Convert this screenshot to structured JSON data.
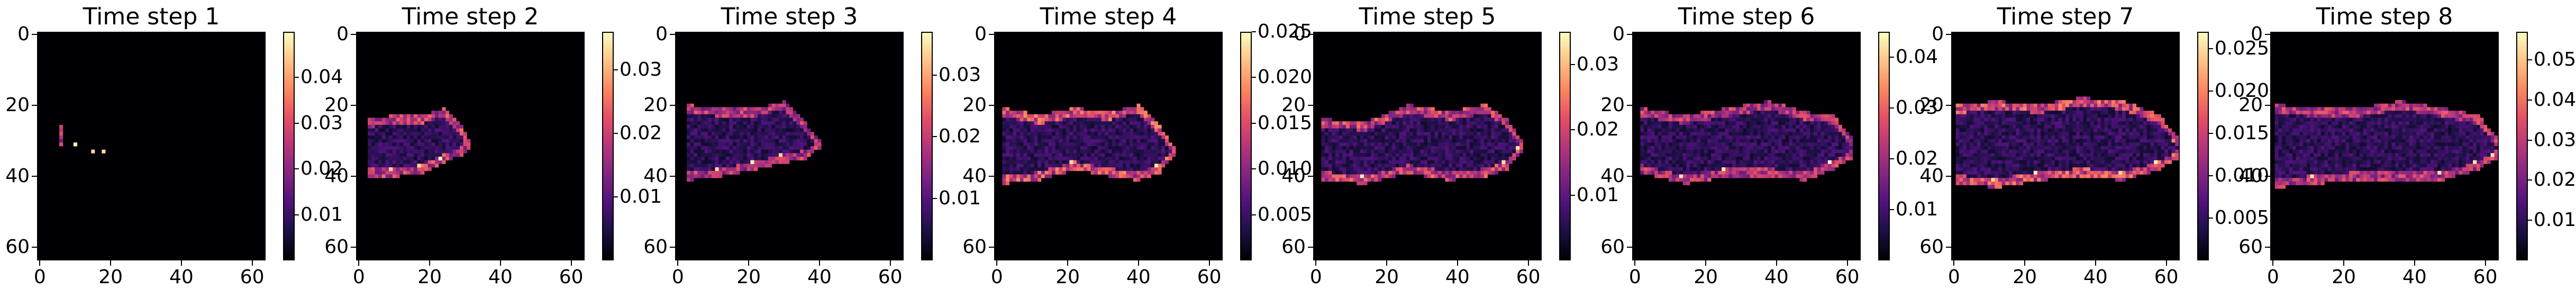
{
  "chart_data": [
    {
      "type": "heatmap",
      "title": "Time step 1",
      "xlim": [
        0,
        63
      ],
      "ylim": [
        63,
        0
      ],
      "x_ticks": [
        "0",
        "20",
        "40",
        "60"
      ],
      "y_ticks": [
        "0",
        "20",
        "40",
        "60"
      ],
      "colorbar": {
        "range": [
          0,
          0.05
        ],
        "ticks": [
          "0.01",
          "0.02",
          "0.03",
          "0.04"
        ]
      },
      "colormap": "magma",
      "structure": {
        "cx": [
          6,
          11,
          16,
          19,
          16,
          11,
          6
        ],
        "top": [
          27,
          26,
          25,
          27,
          30,
          31,
          32
        ],
        "bot": [
          30,
          32,
          35,
          33,
          32,
          32,
          32
        ],
        "edge_intensity": 0.6
      }
    },
    {
      "type": "heatmap",
      "title": "Time step 2",
      "xlim": [
        0,
        63
      ],
      "ylim": [
        63,
        0
      ],
      "x_ticks": [
        "0",
        "20",
        "40",
        "60"
      ],
      "y_ticks": [
        "0",
        "20",
        "40",
        "60"
      ],
      "colorbar": {
        "range": [
          0,
          0.036
        ],
        "ticks": [
          "0.01",
          "0.02",
          "0.03"
        ]
      },
      "colormap": "magma",
      "structure": {
        "cx": [
          3,
          10,
          18,
          24,
          29,
          31
        ],
        "top": [
          25,
          24,
          24,
          22,
          27,
          31
        ],
        "bot": [
          39,
          39,
          38,
          35,
          33,
          31
        ],
        "edge_intensity": 0.65
      }
    },
    {
      "type": "heatmap",
      "title": "Time step 3",
      "xlim": [
        0,
        63
      ],
      "ylim": [
        63,
        0
      ],
      "x_ticks": [
        "0",
        "20",
        "40",
        "60"
      ],
      "y_ticks": [
        "0",
        "20",
        "40",
        "60"
      ],
      "colorbar": {
        "range": [
          0,
          0.037
        ],
        "ticks": [
          "0.01",
          "0.02",
          "0.03"
        ]
      },
      "colormap": "magma",
      "structure": {
        "cx": [
          3,
          12,
          22,
          30,
          36,
          40
        ],
        "top": [
          21,
          22,
          22,
          20,
          26,
          31
        ],
        "bot": [
          40,
          39,
          37,
          35,
          34,
          31
        ],
        "edge_intensity": 0.6
      }
    },
    {
      "type": "heatmap",
      "title": "Time step 4",
      "xlim": [
        0,
        63
      ],
      "ylim": [
        63,
        0
      ],
      "x_ticks": [
        "0",
        "20",
        "40",
        "60"
      ],
      "y_ticks": [
        "0",
        "20",
        "40",
        "60"
      ],
      "colorbar": {
        "range": [
          0,
          0.025
        ],
        "ticks": [
          "0.005",
          "0.010",
          "0.015",
          "0.020",
          "0.025"
        ]
      },
      "colormap": "magma",
      "structure": {
        "cx": [
          2,
          12,
          22,
          32,
          40,
          46,
          50
        ],
        "top": [
          22,
          24,
          22,
          23,
          21,
          27,
          33
        ],
        "bot": [
          41,
          40,
          37,
          39,
          40,
          38,
          33
        ],
        "edge_intensity": 0.7
      }
    },
    {
      "type": "heatmap",
      "title": "Time step 5",
      "xlim": [
        0,
        63
      ],
      "ylim": [
        63,
        0
      ],
      "x_ticks": [
        "0",
        "20",
        "40",
        "60"
      ],
      "y_ticks": [
        "0",
        "20",
        "40",
        "60"
      ],
      "colorbar": {
        "range": [
          0,
          0.035
        ],
        "ticks": [
          "0.01",
          "0.02",
          "0.03"
        ]
      },
      "colormap": "magma",
      "structure": {
        "cx": [
          2,
          14,
          26,
          38,
          48,
          54,
          58
        ],
        "top": [
          25,
          26,
          21,
          23,
          21,
          25,
          31
        ],
        "bot": [
          40,
          41,
          38,
          40,
          39,
          37,
          32
        ],
        "edge_intensity": 0.65
      }
    },
    {
      "type": "heatmap",
      "title": "Time step 6",
      "xlim": [
        0,
        63
      ],
      "ylim": [
        63,
        0
      ],
      "x_ticks": [
        "0",
        "20",
        "40",
        "60"
      ],
      "y_ticks": [
        "0",
        "20",
        "40",
        "60"
      ],
      "colorbar": {
        "range": [
          0,
          0.045
        ],
        "ticks": [
          "0.01",
          "0.02",
          "0.03",
          "0.04"
        ]
      },
      "colormap": "magma",
      "structure": {
        "cx": [
          2,
          14,
          26,
          38,
          48,
          56,
          61
        ],
        "top": [
          22,
          24,
          22,
          20,
          23,
          24,
          30
        ],
        "bot": [
          38,
          41,
          39,
          39,
          40,
          37,
          34
        ],
        "edge_intensity": 0.6
      }
    },
    {
      "type": "heatmap",
      "title": "Time step 7",
      "xlim": [
        0,
        63
      ],
      "ylim": [
        63,
        0
      ],
      "x_ticks": [
        "0",
        "20",
        "40",
        "60"
      ],
      "y_ticks": [
        "0",
        "20",
        "40",
        "60"
      ],
      "colorbar": {
        "range": [
          0,
          0.027
        ],
        "ticks": [
          "0.005",
          "0.010",
          "0.015",
          "0.020",
          "0.025"
        ]
      },
      "colormap": "magma",
      "structure": {
        "cx": [
          1,
          12,
          24,
          36,
          48,
          58,
          63
        ],
        "top": [
          21,
          20,
          21,
          19,
          20,
          24,
          30
        ],
        "bot": [
          41,
          42,
          40,
          39,
          40,
          37,
          34
        ],
        "edge_intensity": 0.7
      }
    },
    {
      "type": "heatmap",
      "title": "Time step 8",
      "xlim": [
        0,
        63
      ],
      "ylim": [
        63,
        0
      ],
      "x_ticks": [
        "0",
        "20",
        "40",
        "60"
      ],
      "y_ticks": [
        "0",
        "20",
        "40",
        "60"
      ],
      "colorbar": {
        "range": [
          0,
          0.057
        ],
        "ticks": [
          "0.01",
          "0.02",
          "0.03",
          "0.04",
          "0.05"
        ]
      },
      "colormap": "magma",
      "structure": {
        "cx": [
          1,
          12,
          24,
          36,
          48,
          58,
          63
        ],
        "top": [
          21,
          22,
          22,
          20,
          22,
          24,
          30
        ],
        "bot": [
          42,
          41,
          40,
          40,
          40,
          37,
          34
        ],
        "edge_intensity": 0.6
      }
    }
  ]
}
